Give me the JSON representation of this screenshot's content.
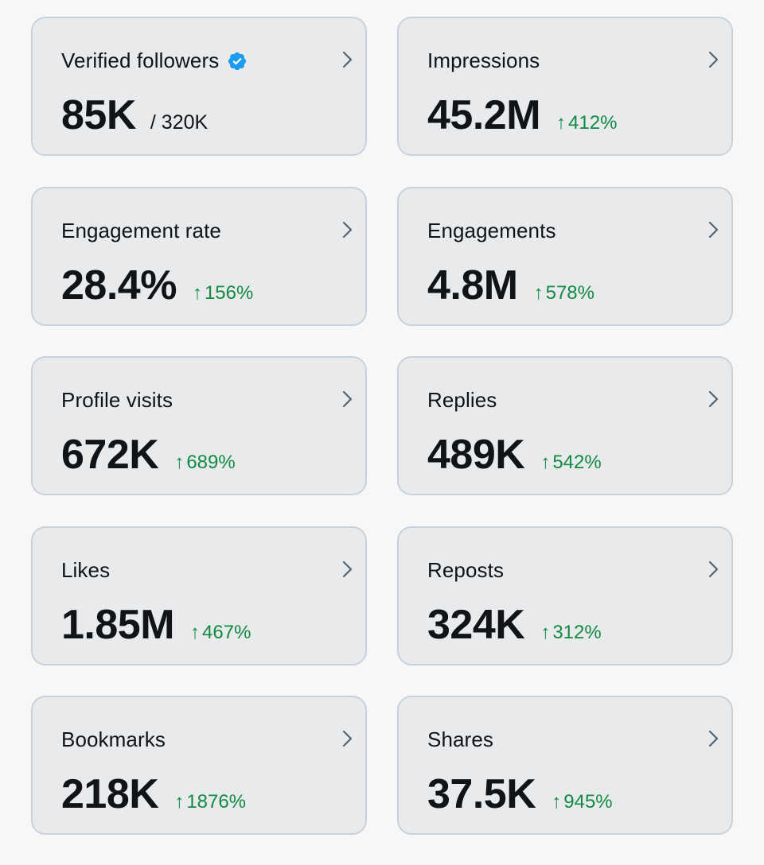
{
  "colors": {
    "card_background": "#e8eaec",
    "card_border": "#c9d2da",
    "text_primary": "#0f1419",
    "positive_change": "#128a43",
    "verified_badge": "#1d9bf0"
  },
  "metrics": [
    {
      "label": "Verified followers",
      "value": "85K",
      "total": "/ 320K",
      "verified_icon": "verified-badge-icon"
    },
    {
      "label": "Impressions",
      "value": "45.2M",
      "change_arrow": "↑",
      "change": "412%"
    },
    {
      "label": "Engagement rate",
      "value": "28.4%",
      "change_arrow": "↑",
      "change": "156%"
    },
    {
      "label": "Engagements",
      "value": "4.8M",
      "change_arrow": "↑",
      "change": "578%"
    },
    {
      "label": "Profile visits",
      "value": "672K",
      "change_arrow": "↑",
      "change": "689%"
    },
    {
      "label": "Replies",
      "value": "489K",
      "change_arrow": "↑",
      "change": "542%"
    },
    {
      "label": "Likes",
      "value": "1.85M",
      "change_arrow": "↑",
      "change": "467%"
    },
    {
      "label": "Reposts",
      "value": "324K",
      "change_arrow": "↑",
      "change": "312%"
    },
    {
      "label": "Bookmarks",
      "value": "218K",
      "change_arrow": "↑",
      "change": "1876%"
    },
    {
      "label": "Shares",
      "value": "37.5K",
      "change_arrow": "↑",
      "change": "945%"
    }
  ],
  "icons": {
    "chevron": "chevron-right-icon",
    "verified": "verified-badge-icon"
  }
}
